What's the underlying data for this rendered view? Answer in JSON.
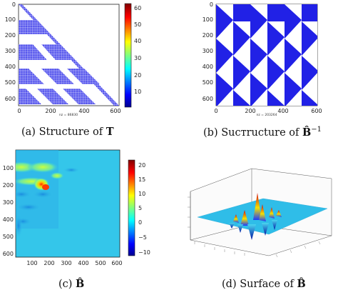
{
  "figure": {
    "panels": [
      {
        "id": "a",
        "caption_prefix": "(a) Structure of",
        "caption_symbol": "T",
        "axis_ticks_x": [
          "0",
          "200",
          "400",
          "600"
        ],
        "axis_ticks_y": [
          "0",
          "100",
          "200",
          "300",
          "400",
          "500",
          "600"
        ],
        "nz_label": "nz = 86830",
        "colorbar_ticks": [
          "60",
          "50",
          "40",
          "30",
          "20",
          "10"
        ]
      },
      {
        "id": "b",
        "caption_prefix": "(b) Sucтructure of",
        "caption_symbol": "B̂",
        "caption_superscript": "−1",
        "axis_ticks_x": [
          "0",
          "200",
          "400",
          "600"
        ],
        "axis_ticks_y": [
          "0",
          "100",
          "200",
          "300",
          "400",
          "500",
          "600"
        ],
        "nz_label": "nz = 203264"
      },
      {
        "id": "c",
        "caption_prefix": "(c)",
        "caption_symbol": "B̂",
        "axis_ticks_x": [
          "100",
          "200",
          "300",
          "400",
          "500",
          "600"
        ],
        "axis_ticks_y": [
          "100",
          "200",
          "300",
          "400",
          "500",
          "600"
        ],
        "colorbar_ticks": [
          "20",
          "15",
          "10",
          "5",
          "0",
          "−5",
          "−10"
        ]
      },
      {
        "id": "d",
        "caption_prefix": "(d) Surface of",
        "caption_symbol": "B̂"
      }
    ]
  },
  "colors": {
    "spy_blue": "#1f1fe6",
    "field_bg": "#34c6ea",
    "surface_bg": "#2fbde8"
  }
}
